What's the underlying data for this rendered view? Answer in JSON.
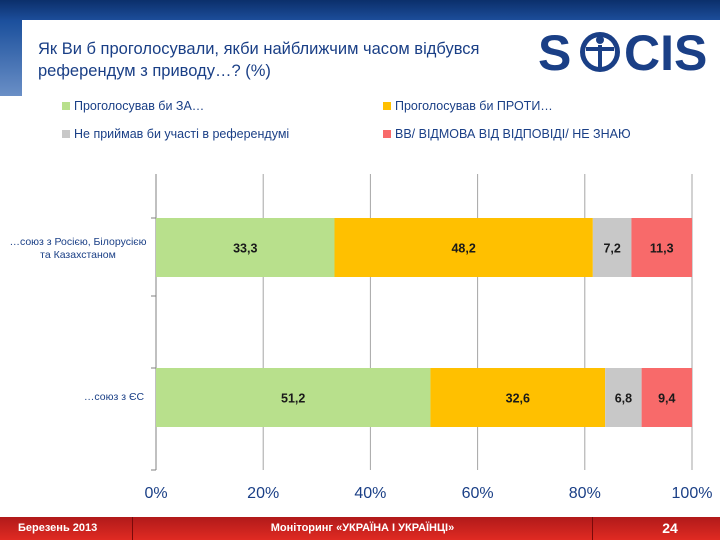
{
  "header": {
    "title": "Як Ви б проголосували, якби найближчим часом відбувся референдум з приводу…? (%)",
    "logo_text": "SOCIS"
  },
  "legend": [
    {
      "label": "Проголосував би ЗА…",
      "color": "#b8e08c"
    },
    {
      "label": "Проголосував би ПРОТИ…",
      "color": "#ffc000"
    },
    {
      "label": "Не приймав би участі в референдумі",
      "color": "#c8c8c8"
    },
    {
      "label": "ВВ/ ВІДМОВА ВІД ВІДПОВІДІ/ НЕ ЗНАЮ",
      "color": "#f86a6a"
    }
  ],
  "chart_data": {
    "type": "bar",
    "orientation": "horizontal",
    "stacked": true,
    "categories": [
      "…союз з Росією, Білорусією та Казахстаном",
      "…союз з ЄС"
    ],
    "series": [
      {
        "name": "Проголосував би ЗА…",
        "color": "#b8e08c",
        "values": [
          33.3,
          51.2
        ],
        "labels": [
          "33,3",
          "51,2"
        ]
      },
      {
        "name": "Проголосував би ПРОТИ…",
        "color": "#ffc000",
        "values": [
          48.2,
          32.6
        ],
        "labels": [
          "48,2",
          "32,6"
        ]
      },
      {
        "name": "Не приймав би участі в референдумі",
        "color": "#c8c8c8",
        "values": [
          7.2,
          6.8
        ],
        "labels": [
          "7,2",
          "6,8"
        ]
      },
      {
        "name": "ВВ/ ВІДМОВА ВІД ВІДПОВІДІ/ НЕ ЗНАЮ",
        "color": "#f86a6a",
        "values": [
          11.3,
          9.4
        ],
        "labels": [
          "11,3",
          "9,4"
        ]
      }
    ],
    "x_ticks": [
      "0%",
      "20%",
      "40%",
      "60%",
      "80%",
      "100%"
    ],
    "xlim": [
      0,
      100
    ],
    "grid": true,
    "legend_position": "top"
  },
  "footer": {
    "date": "Березень 2013",
    "center": "Моніторинг «УКРАЇНА І УКРАЇНЦІ»",
    "page": "24"
  }
}
